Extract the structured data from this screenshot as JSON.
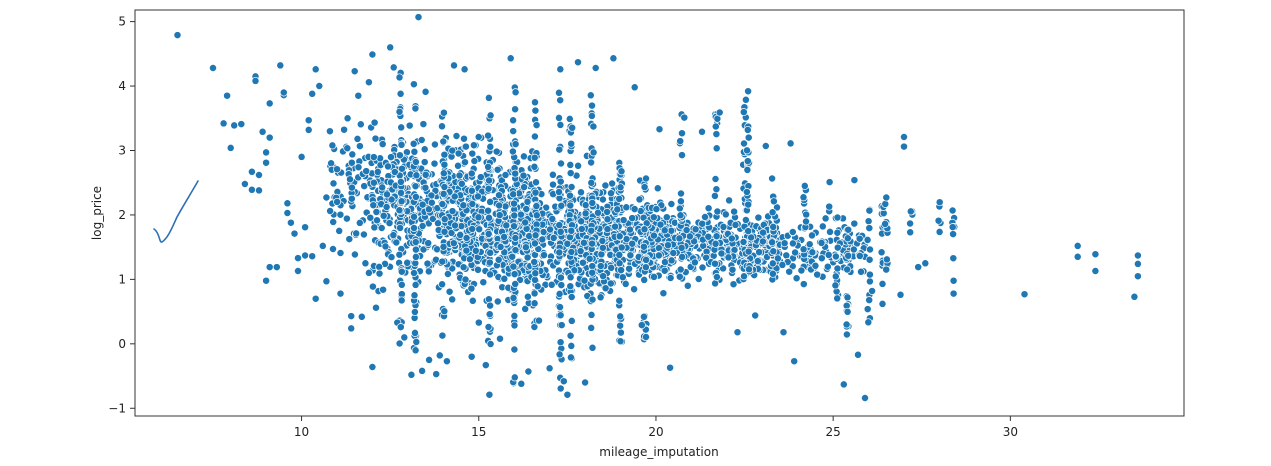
{
  "chart_data": {
    "type": "scatter",
    "title": "",
    "xlabel": "mileage_imputation",
    "ylabel": "log_price",
    "xlim": [
      5.3,
      34.9
    ],
    "ylim": [
      -1.12,
      5.18
    ],
    "xticks": [
      10,
      15,
      20,
      25,
      30
    ],
    "yticks": [
      -1,
      0,
      1,
      2,
      3,
      4,
      5
    ],
    "xtick_labels": [
      "10",
      "15",
      "20",
      "25",
      "30"
    ],
    "ytick_labels": [
      "−1",
      "0",
      "1",
      "2",
      "3",
      "4",
      "5"
    ],
    "grid": false,
    "legend": "none",
    "marker_color": "#1f77b4",
    "marker_edge": "#ffffff",
    "annotation": "hand-drawn check mark stroke in blue at upper left",
    "points": [
      [
        6.5,
        4.79
      ],
      [
        13.3,
        5.07
      ],
      [
        7.5,
        4.28
      ],
      [
        7.8,
        3.42
      ],
      [
        7.9,
        3.85
      ],
      [
        8.0,
        3.04
      ],
      [
        8.1,
        3.39
      ],
      [
        8.3,
        3.41
      ],
      [
        8.4,
        2.48
      ],
      [
        8.6,
        2.67
      ],
      [
        8.6,
        2.39
      ],
      [
        8.7,
        4.15
      ],
      [
        8.7,
        4.08
      ],
      [
        8.8,
        2.62
      ],
      [
        8.8,
        2.38
      ],
      [
        8.9,
        3.29
      ],
      [
        9.0,
        2.81
      ],
      [
        9.1,
        3.73
      ],
      [
        9.0,
        2.97
      ],
      [
        9.1,
        3.2
      ],
      [
        9.0,
        0.98
      ],
      [
        9.1,
        1.19
      ],
      [
        9.3,
        1.19
      ],
      [
        9.4,
        4.32
      ],
      [
        9.5,
        3.86
      ],
      [
        9.5,
        3.9
      ],
      [
        9.6,
        2.03
      ],
      [
        9.6,
        2.18
      ],
      [
        9.7,
        1.88
      ],
      [
        9.8,
        1.71
      ],
      [
        9.9,
        1.33
      ],
      [
        9.9,
        1.13
      ],
      [
        10.0,
        2.9
      ],
      [
        10.1,
        1.81
      ],
      [
        10.1,
        1.37
      ],
      [
        10.2,
        3.47
      ],
      [
        10.2,
        3.32
      ],
      [
        10.3,
        3.88
      ],
      [
        10.3,
        1.36
      ],
      [
        10.4,
        4.26
      ],
      [
        10.4,
        0.7
      ],
      [
        10.5,
        4.0
      ],
      [
        10.6,
        1.52
      ],
      [
        10.7,
        2.27
      ],
      [
        10.7,
        0.97
      ],
      [
        10.8,
        3.3
      ],
      [
        10.9,
        2.49
      ],
      [
        11.0,
        2.71
      ],
      [
        11.1,
        1.41
      ],
      [
        11.1,
        0.78
      ],
      [
        11.3,
        3.5
      ],
      [
        11.4,
        0.43
      ],
      [
        11.4,
        0.24
      ],
      [
        11.5,
        4.23
      ],
      [
        11.6,
        3.85
      ],
      [
        11.7,
        0.42
      ],
      [
        11.8,
        1.25
      ],
      [
        11.9,
        1.1
      ],
      [
        11.9,
        4.06
      ],
      [
        12.0,
        -0.36
      ],
      [
        12.0,
        4.49
      ],
      [
        12.1,
        0.56
      ],
      [
        12.2,
        1.09
      ],
      [
        12.3,
        0.84
      ],
      [
        12.5,
        4.6
      ],
      [
        12.6,
        4.29
      ],
      [
        12.7,
        0.33
      ],
      [
        12.8,
        0.26
      ],
      [
        12.9,
        0.1
      ],
      [
        13.1,
        -0.48
      ],
      [
        13.2,
        0.17
      ],
      [
        13.4,
        -0.42
      ],
      [
        13.5,
        3.91
      ],
      [
        13.6,
        -0.25
      ],
      [
        13.8,
        -0.47
      ],
      [
        13.9,
        -0.18
      ],
      [
        14.1,
        -0.27
      ],
      [
        14.3,
        4.32
      ],
      [
        14.6,
        4.26
      ],
      [
        14.8,
        -0.2
      ],
      [
        15.0,
        0.33
      ],
      [
        15.2,
        -0.33
      ],
      [
        15.3,
        -0.79
      ],
      [
        15.6,
        0.08
      ],
      [
        15.9,
        4.43
      ],
      [
        16.2,
        -0.62
      ],
      [
        16.4,
        -0.43
      ],
      [
        16.7,
        0.36
      ],
      [
        17.0,
        -0.38
      ],
      [
        17.3,
        4.26
      ],
      [
        17.4,
        -0.58
      ],
      [
        17.5,
        -0.79
      ],
      [
        17.8,
        4.37
      ],
      [
        18.0,
        -0.6
      ],
      [
        18.3,
        4.28
      ],
      [
        18.8,
        4.43
      ],
      [
        19.0,
        0.04
      ],
      [
        19.4,
        3.98
      ],
      [
        19.6,
        0.29
      ],
      [
        20.1,
        3.33
      ],
      [
        20.4,
        -0.37
      ],
      [
        20.8,
        3.51
      ],
      [
        21.3,
        3.29
      ],
      [
        21.8,
        3.59
      ],
      [
        22.3,
        0.18
      ],
      [
        22.6,
        3.92
      ],
      [
        22.8,
        0.44
      ],
      [
        23.1,
        3.07
      ],
      [
        23.6,
        0.18
      ],
      [
        23.8,
        3.11
      ],
      [
        23.9,
        -0.27
      ],
      [
        24.2,
        2.45
      ],
      [
        24.5,
        1.21
      ],
      [
        24.9,
        2.51
      ],
      [
        25.3,
        -0.63
      ],
      [
        25.6,
        2.54
      ],
      [
        25.7,
        -0.17
      ],
      [
        25.9,
        -0.84
      ],
      [
        26.1,
        0.82
      ],
      [
        26.5,
        2.27
      ],
      [
        26.9,
        0.76
      ],
      [
        27.0,
        3.21
      ],
      [
        27.0,
        3.06
      ],
      [
        27.4,
        1.19
      ],
      [
        27.6,
        1.25
      ],
      [
        28.4,
        0.98
      ],
      [
        28.4,
        0.78
      ],
      [
        30.4,
        0.77
      ],
      [
        31.9,
        1.52
      ],
      [
        31.9,
        1.35
      ],
      [
        32.4,
        1.39
      ],
      [
        32.4,
        1.13
      ],
      [
        33.5,
        0.73
      ],
      [
        33.6,
        1.24
      ],
      [
        33.6,
        1.37
      ],
      [
        33.6,
        1.05
      ]
    ],
    "clouds": [
      {
        "x_range": [
          10.8,
          13.5
        ],
        "y_center": 2.4,
        "y_spread": 0.8,
        "n": 180
      },
      {
        "x_range": [
          12.0,
          15.0
        ],
        "y_center": 2.0,
        "y_spread": 0.95,
        "n": 320
      },
      {
        "x_range": [
          14.0,
          16.5
        ],
        "y_center": 1.9,
        "y_spread": 0.95,
        "n": 360
      },
      {
        "x_range": [
          15.5,
          19.0
        ],
        "y_center": 1.7,
        "y_spread": 0.8,
        "n": 520
      },
      {
        "x_range": [
          17.5,
          20.5
        ],
        "y_center": 1.6,
        "y_spread": 0.6,
        "n": 360
      },
      {
        "x_range": [
          19.5,
          23.5
        ],
        "y_center": 1.55,
        "y_spread": 0.45,
        "n": 340
      },
      {
        "x_range": [
          22.0,
          26.0
        ],
        "y_center": 1.5,
        "y_spread": 0.4,
        "n": 200
      }
    ],
    "columns": [
      {
        "x": 12.8,
        "y_range": [
          0.0,
          4.3
        ]
      },
      {
        "x": 13.2,
        "y_range": [
          -0.1,
          4.1
        ]
      },
      {
        "x": 14.0,
        "y_range": [
          0.0,
          3.6
        ]
      },
      {
        "x": 15.3,
        "y_range": [
          -0.2,
          3.9
        ]
      },
      {
        "x": 16.0,
        "y_range": [
          -0.75,
          4.1
        ]
      },
      {
        "x": 16.6,
        "y_range": [
          -0.1,
          3.8
        ]
      },
      {
        "x": 17.3,
        "y_range": [
          -0.7,
          4.0
        ]
      },
      {
        "x": 17.6,
        "y_range": [
          -0.3,
          3.5
        ]
      },
      {
        "x": 18.2,
        "y_range": [
          -0.1,
          3.9
        ]
      },
      {
        "x": 19.0,
        "y_range": [
          0.0,
          3.0
        ]
      },
      {
        "x": 19.7,
        "y_range": [
          0.0,
          2.6
        ]
      },
      {
        "x": 20.7,
        "y_range": [
          1.0,
          3.6
        ]
      },
      {
        "x": 21.7,
        "y_range": [
          0.9,
          3.6
        ]
      },
      {
        "x": 22.5,
        "y_range": [
          1.0,
          3.8
        ]
      },
      {
        "x": 22.6,
        "y_range": [
          0.9,
          3.4
        ]
      },
      {
        "x": 23.3,
        "y_range": [
          0.9,
          2.6
        ]
      },
      {
        "x": 24.2,
        "y_range": [
          0.8,
          2.4
        ]
      },
      {
        "x": 25.1,
        "y_range": [
          0.5,
          2.3
        ]
      },
      {
        "x": 25.4,
        "y_range": [
          -0.1,
          2.0
        ]
      },
      {
        "x": 26.0,
        "y_range": [
          0.3,
          2.1
        ]
      },
      {
        "x": 26.4,
        "y_range": [
          0.6,
          2.2
        ]
      },
      {
        "x": 26.5,
        "y_range": [
          1.1,
          2.2
        ]
      },
      {
        "x": 27.2,
        "y_range": [
          1.6,
          2.1
        ]
      },
      {
        "x": 28.0,
        "y_range": [
          1.7,
          2.2
        ]
      },
      {
        "x": 28.4,
        "y_range": [
          1.3,
          2.2
        ]
      }
    ]
  }
}
